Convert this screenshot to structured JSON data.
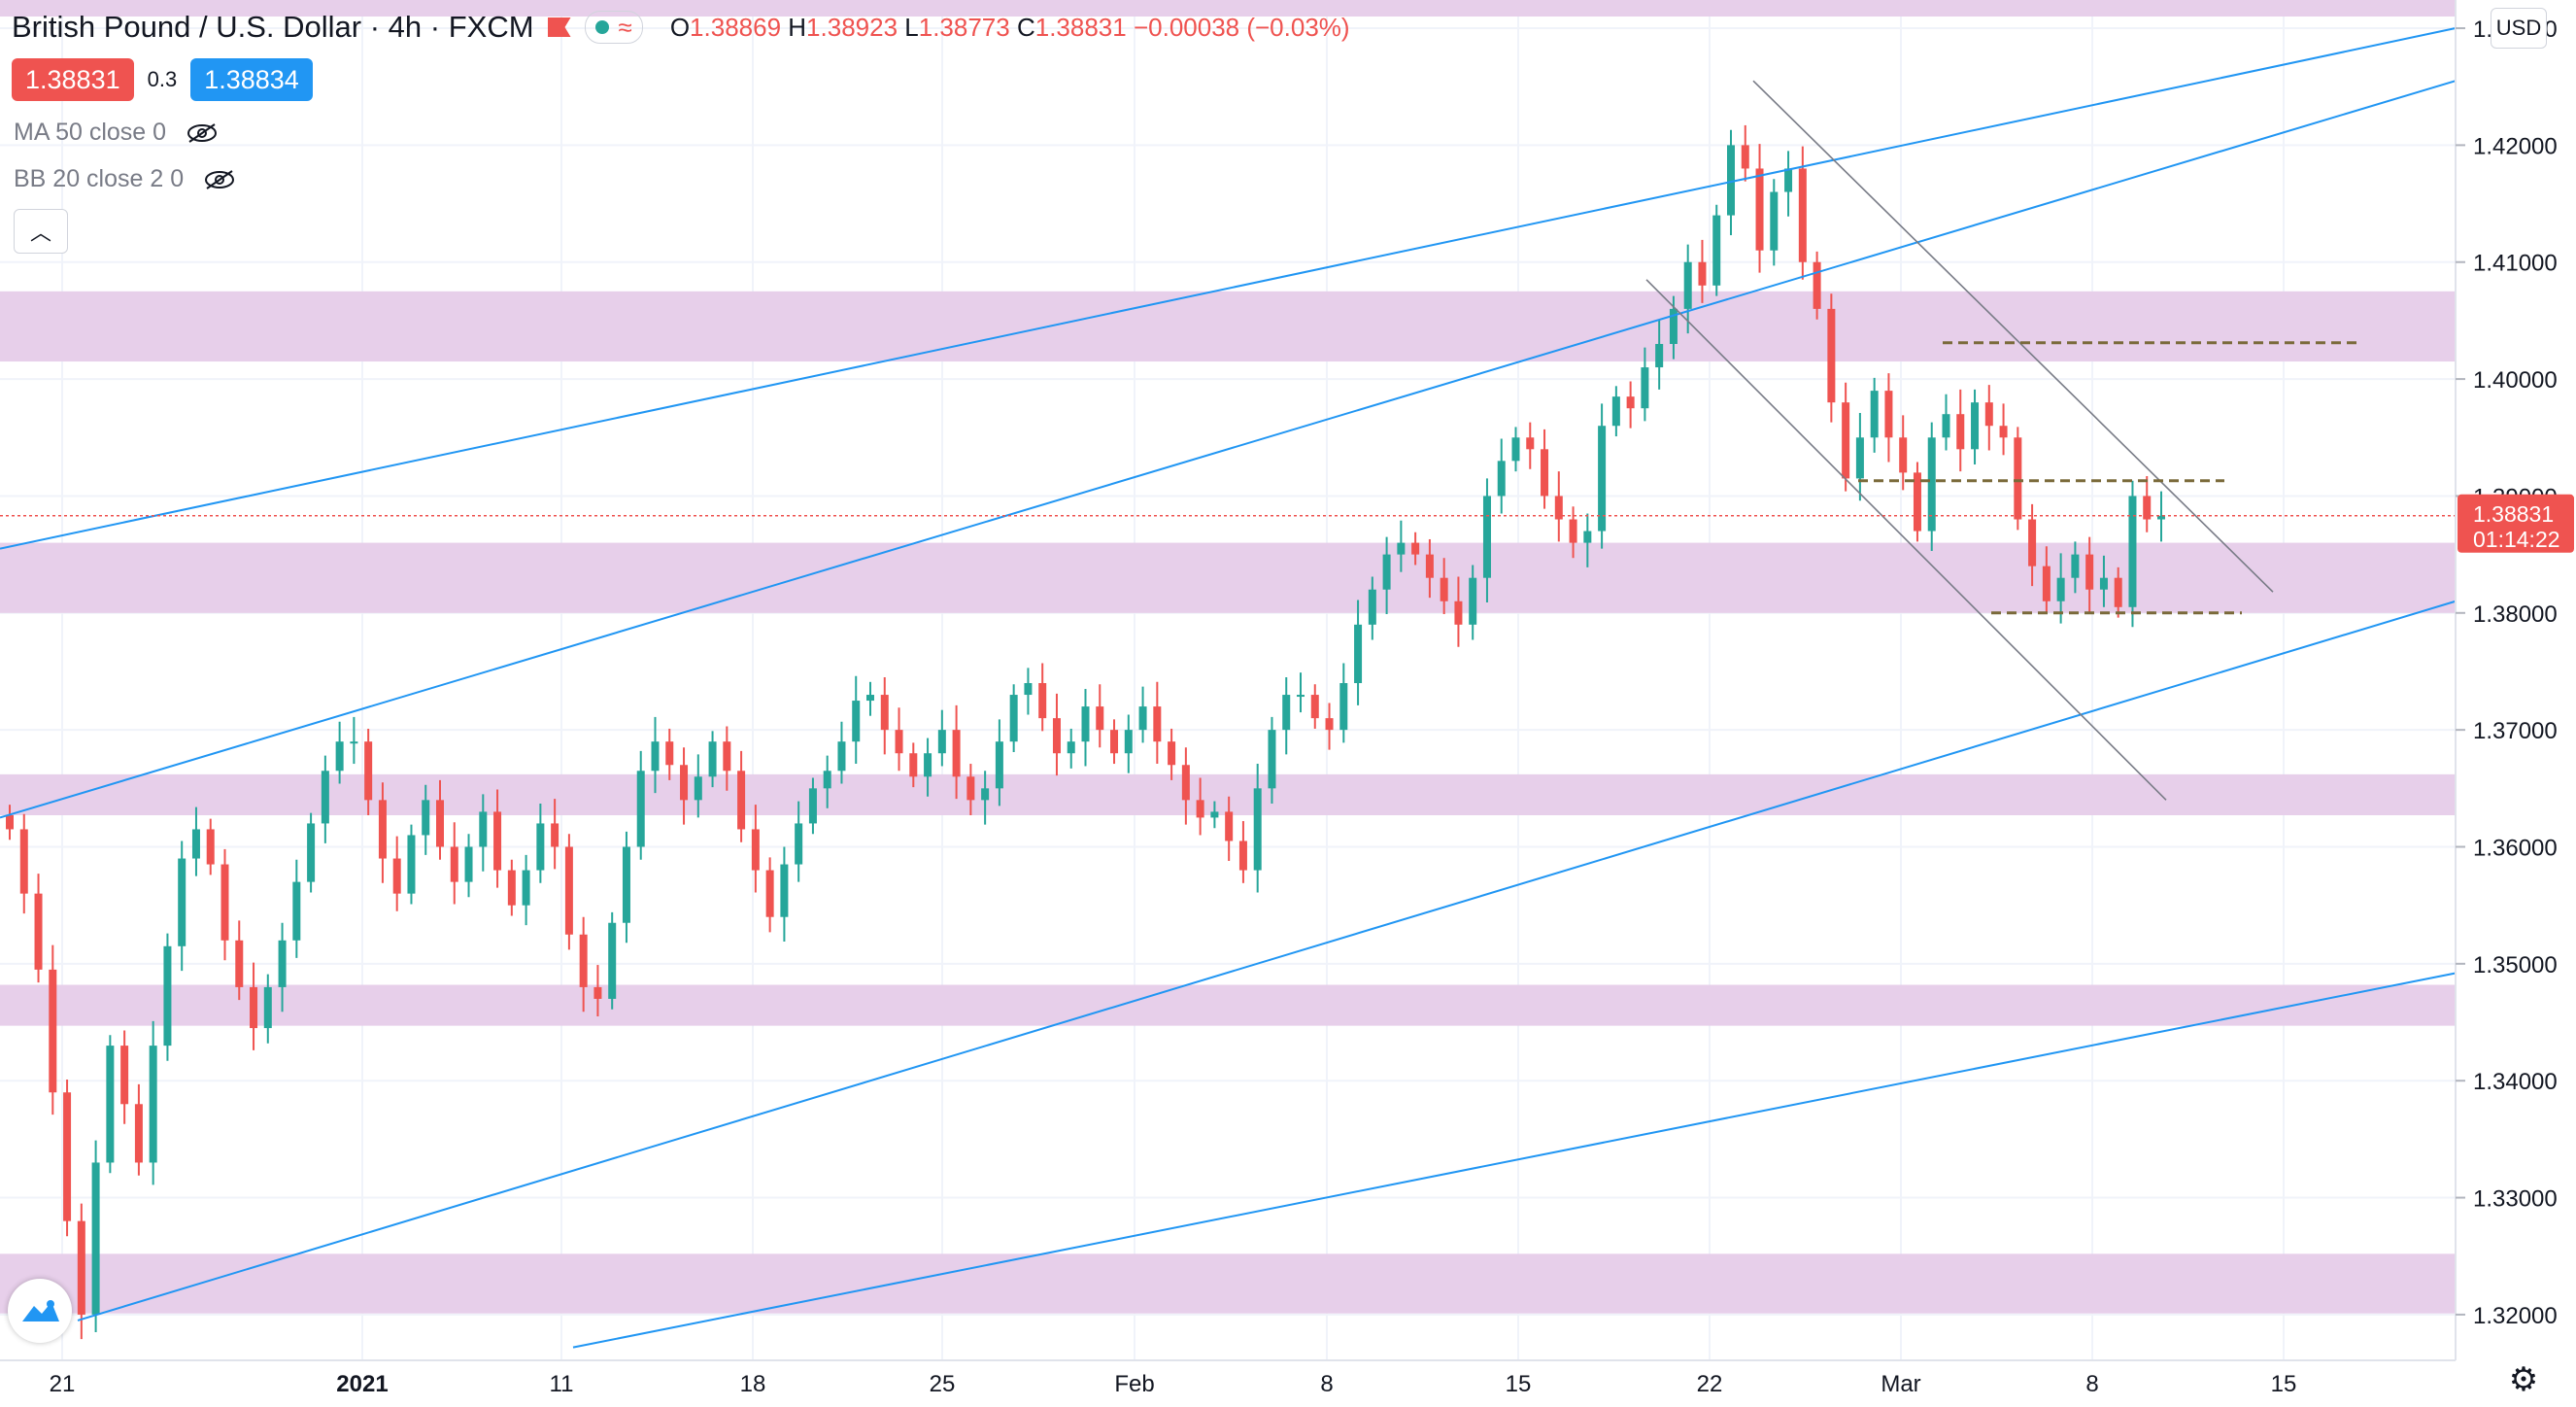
{
  "header": {
    "title": "British Pound / U.S. Dollar",
    "interval": "4h",
    "exchange": "FXCM",
    "ohlc": {
      "o_label": "O",
      "o": "1.38869",
      "h_label": "H",
      "h": "1.38923",
      "l_label": "L",
      "l": "1.38773",
      "c_label": "C",
      "c": "1.38831",
      "change": "−0.00038 (−0.03%)"
    }
  },
  "quote": {
    "sell": "1.38831",
    "spread": "0.3",
    "buy": "1.38834"
  },
  "indicators": [
    {
      "label": "MA 50 close 0"
    },
    {
      "label": "BB 20 close 2 0"
    }
  ],
  "currency_button": "USD",
  "current_price": {
    "value": "1.38831",
    "countdown": "01:14:22",
    "color": "#ef5350"
  },
  "chart_data": {
    "type": "candlestick",
    "symbol": "GBPUSD",
    "ylim": [
      1.3175,
      1.431
    ],
    "y_ticks": [
      "1.43000",
      "1.42000",
      "1.41000",
      "1.40000",
      "1.39000",
      "1.38000",
      "1.37000",
      "1.36000",
      "1.35000",
      "1.34000",
      "1.33000",
      "1.32000"
    ],
    "x_ticks": [
      "21",
      "2021",
      "11",
      "18",
      "25",
      "Feb",
      "8",
      "15",
      "22",
      "Mar",
      "8",
      "15"
    ],
    "grid": true,
    "up_color": "#26a69a",
    "down_color": "#ef5350",
    "band_color": "#e7cfea",
    "trendline_color": "#2196f3",
    "channel_color": "#787b86",
    "level_color": "#7a6a3a",
    "zones": [
      [
        1.4015,
        1.4075
      ],
      [
        1.38,
        1.386
      ],
      [
        1.3627,
        1.3662
      ],
      [
        1.3447,
        1.3482
      ],
      [
        1.3201,
        1.3252
      ]
    ],
    "key_levels": [
      1.4031,
      1.3913,
      1.38
    ],
    "closes": [
      1.3615,
      1.356,
      1.3495,
      1.339,
      1.328,
      1.32,
      1.333,
      1.343,
      1.338,
      1.333,
      1.343,
      1.3515,
      1.359,
      1.3615,
      1.3585,
      1.352,
      1.348,
      1.3445,
      1.348,
      1.352,
      1.357,
      1.362,
      1.3665,
      1.369,
      1.369,
      1.364,
      1.359,
      1.356,
      1.361,
      1.364,
      1.36,
      1.357,
      1.36,
      1.363,
      1.358,
      1.355,
      1.358,
      1.362,
      1.36,
      1.3525,
      1.348,
      1.347,
      1.3535,
      1.36,
      1.3665,
      1.369,
      1.367,
      1.364,
      1.366,
      1.369,
      1.3665,
      1.3615,
      1.358,
      1.354,
      1.3585,
      1.362,
      1.365,
      1.3665,
      1.369,
      1.3725,
      1.373,
      1.37,
      1.368,
      1.366,
      1.368,
      1.37,
      1.366,
      1.364,
      1.365,
      1.369,
      1.373,
      1.374,
      1.371,
      1.368,
      1.369,
      1.372,
      1.37,
      1.368,
      1.37,
      1.372,
      1.369,
      1.367,
      1.364,
      1.3625,
      1.363,
      1.3605,
      1.358,
      1.365,
      1.37,
      1.373,
      1.373,
      1.371,
      1.37,
      1.374,
      1.379,
      1.382,
      1.385,
      1.386,
      1.385,
      1.383,
      1.381,
      1.379,
      1.383,
      1.39,
      1.393,
      1.395,
      1.394,
      1.39,
      1.388,
      1.386,
      1.387,
      1.396,
      1.3985,
      1.3975,
      1.401,
      1.403,
      1.406,
      1.41,
      1.408,
      1.414,
      1.42,
      1.418,
      1.411,
      1.416,
      1.418,
      1.41,
      1.406,
      1.398,
      1.3915,
      1.395,
      1.399,
      1.395,
      1.392,
      1.387,
      1.395,
      1.397,
      1.394,
      1.398,
      1.396,
      1.395,
      1.388,
      1.384,
      1.381,
      1.383,
      1.385,
      1.382,
      1.383,
      1.3805,
      1.39,
      1.388,
      1.3883
    ]
  }
}
